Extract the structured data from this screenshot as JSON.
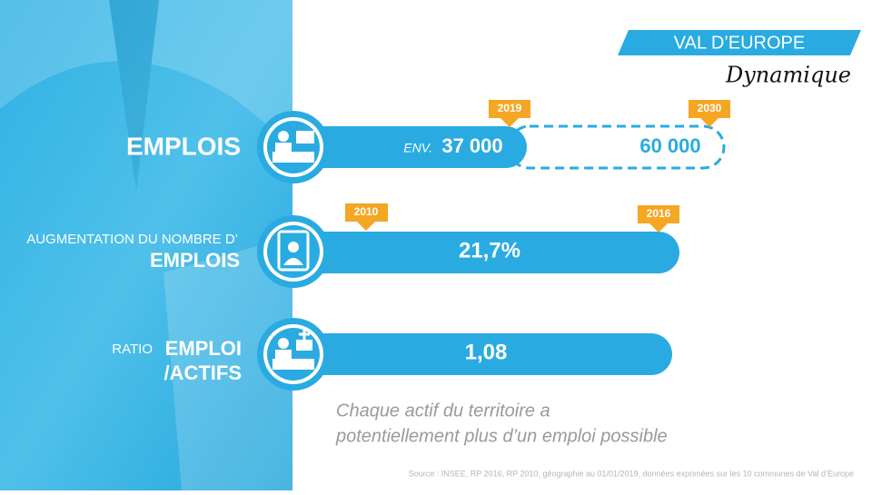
{
  "header": {
    "title": "VAL D’EUROPE",
    "subtitle": "Dynamique"
  },
  "rows": [
    {
      "label": [
        "EMPLOIS"
      ],
      "start_tag": "2019",
      "end_tag": "2030",
      "prefix": "ENV.",
      "value": "37 000",
      "target": "60 000"
    },
    {
      "label": [
        "AUGMENTATION DU NOMBRE D’",
        "EMPLOIS"
      ],
      "start_tag": "2010",
      "end_tag": "2016",
      "value": "21,7%"
    },
    {
      "label": [
        "RATIO",
        "EMPLOI",
        "/ACTIFS"
      ],
      "value": "1,08"
    }
  ],
  "note": [
    "Chaque actif du territoire a",
    "potentiellement plus d’un emploi possible"
  ],
  "source": "Source : INSEE, RP 2016, RP 2010, géographie au 01/01/2019, données exprimées sur les 10 communes de Val d’Europe"
}
